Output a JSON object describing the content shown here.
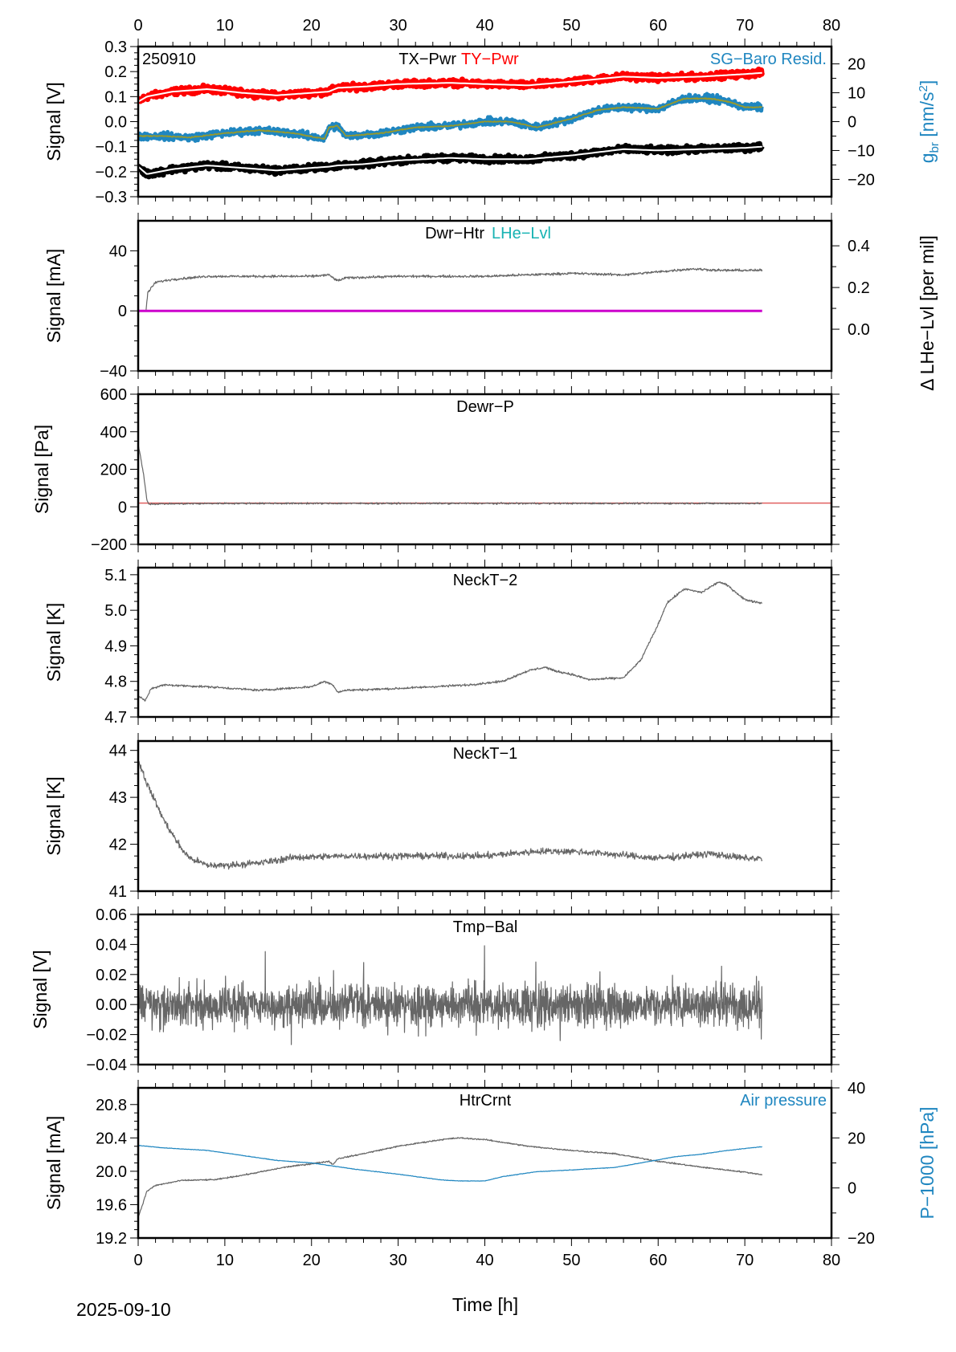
{
  "figure": {
    "date_label": "2025-09-10",
    "xlabel": "Time [h]",
    "xlim": [
      0,
      80
    ],
    "xticks": [
      0,
      10,
      20,
      30,
      40,
      50,
      60,
      70,
      80
    ],
    "xtick_labels": [
      "0",
      "10",
      "20",
      "30",
      "40",
      "50",
      "60",
      "70",
      "80"
    ],
    "data_end_hour": 72
  },
  "chart_data": [
    {
      "type": "line",
      "title": "TX-Pwr / TY-Pwr / SG-Baro Resid.",
      "id_label": "250910",
      "ylabel": "Signal [V]",
      "ylim": [
        -0.3,
        0.3
      ],
      "yticks": [
        -0.3,
        -0.2,
        -0.1,
        0.0,
        0.1,
        0.2,
        0.3
      ],
      "ytick_labels": [
        "−0.3",
        "−0.2",
        "−0.1",
        "0.0",
        "0.1",
        "0.2",
        "0.3"
      ],
      "y2label_main": "g",
      "y2label_sub": "br",
      "y2label_unit": " [nm/s",
      "y2label_sup": "2",
      "y2label_end": "]",
      "y2lim": [
        -26,
        26
      ],
      "y2ticks": [
        -20,
        -10,
        0,
        10,
        20
      ],
      "y2tick_labels": [
        "−20",
        "−10",
        "0",
        "10",
        "20"
      ],
      "legend": [
        {
          "text": "TX-Pwr",
          "color": "#000000"
        },
        {
          "text": "TY-Pwr",
          "color": "#ff0000"
        },
        {
          "text": "SG-Baro Resid.",
          "color": "#1f86c0"
        }
      ],
      "series": [
        {
          "name": "TY-Pwr",
          "color": "#ff0000",
          "axis": "left",
          "noise": 0.012,
          "x": [
            0,
            1,
            4,
            8,
            12,
            16,
            20,
            22,
            23,
            26,
            30,
            36,
            40,
            45,
            50,
            56,
            60,
            65,
            70,
            72
          ],
          "y": [
            0.08,
            0.1,
            0.12,
            0.13,
            0.115,
            0.105,
            0.115,
            0.12,
            0.135,
            0.14,
            0.15,
            0.155,
            0.15,
            0.145,
            0.16,
            0.18,
            0.175,
            0.18,
            0.19,
            0.195
          ]
        },
        {
          "name": "TX-Pwr",
          "color": "#000000",
          "axis": "left",
          "noise": 0.012,
          "x": [
            0,
            1,
            4,
            8,
            12,
            16,
            20,
            22,
            23,
            26,
            30,
            36,
            40,
            45,
            50,
            56,
            60,
            65,
            70,
            72
          ],
          "y": [
            -0.18,
            -0.21,
            -0.19,
            -0.175,
            -0.185,
            -0.195,
            -0.185,
            -0.18,
            -0.175,
            -0.17,
            -0.155,
            -0.145,
            -0.15,
            -0.15,
            -0.135,
            -0.11,
            -0.115,
            -0.11,
            -0.105,
            -0.1
          ]
        },
        {
          "name": "SG-Baro Resid.",
          "color": "#1f86c0",
          "axis": "right",
          "noise": 1.2,
          "x": [
            0,
            3,
            6,
            10,
            14,
            18,
            21.5,
            22,
            23,
            24,
            28,
            32,
            36,
            40,
            43,
            46,
            50,
            53,
            56,
            60,
            63,
            66,
            68,
            70,
            72
          ],
          "y": [
            -5,
            -5,
            -5.5,
            -4,
            -3,
            -4,
            -6,
            -2,
            -1.5,
            -5,
            -4,
            -2,
            -1.5,
            0,
            0,
            -2,
            1,
            4,
            5,
            4.5,
            8,
            8,
            7,
            5,
            5
          ]
        },
        {
          "name": "SG-Baro Resid. (smoothed)",
          "color": "#9a9a2a",
          "axis": "right",
          "noise": 0.2,
          "x": [
            0,
            3,
            6,
            10,
            14,
            18,
            21.5,
            22,
            23,
            24,
            28,
            32,
            36,
            40,
            43,
            46,
            50,
            53,
            56,
            60,
            63,
            66,
            68,
            70,
            72
          ],
          "y": [
            -5,
            -5,
            -5.5,
            -4,
            -3,
            -4,
            -6,
            -2,
            -1.5,
            -5,
            -4,
            -2,
            -1.5,
            0,
            0,
            -2,
            1,
            4,
            5,
            4.5,
            8,
            8,
            7,
            5,
            5
          ]
        }
      ]
    },
    {
      "type": "line",
      "title": "Dwr-Htr / LHe-Lvl",
      "ylabel": "Signal [mA]",
      "ylim": [
        -40,
        60
      ],
      "yticks": [
        -40,
        0,
        40
      ],
      "ytick_labels": [
        "−40",
        "0",
        "40"
      ],
      "y2label": "Δ LHe−Lvl [per mil]",
      "y2lim": [
        -0.2,
        0.52
      ],
      "y2ticks": [
        0.0,
        0.2,
        0.4
      ],
      "y2tick_labels": [
        "0.0",
        "0.2",
        "0.4"
      ],
      "legend": [
        {
          "text": "Dwr-Htr",
          "color": "#000000"
        },
        {
          "text": "LHe-Lvl",
          "color": "#17b3b3"
        }
      ],
      "series": [
        {
          "name": "Dwr-Htr",
          "color": "#666666",
          "axis": "left",
          "noise": 0.8,
          "x": [
            0.9,
            1.1,
            2,
            4,
            8,
            14,
            20,
            22,
            23,
            24,
            30,
            40,
            50,
            56,
            60,
            64,
            67,
            70,
            72
          ],
          "y": [
            0,
            12,
            19,
            21,
            23,
            23,
            23,
            24,
            20,
            22,
            23,
            23,
            25,
            24,
            26,
            28,
            27,
            27,
            27
          ]
        },
        {
          "name": "LHe-Lvl",
          "color": "#cc00cc",
          "axis": "left",
          "noise": 0,
          "x": [
            0,
            72
          ],
          "y": [
            0,
            0
          ]
        }
      ]
    },
    {
      "type": "line",
      "title": "Dewr-P",
      "ylabel": "Signal [Pa]",
      "ylim": [
        -200,
        600
      ],
      "yticks": [
        -200,
        0,
        200,
        400,
        600
      ],
      "ytick_labels": [
        "−200",
        "0",
        "200",
        "400",
        "600"
      ],
      "legend": [
        {
          "text": "Dewr-P",
          "color": "#000000"
        }
      ],
      "series": [
        {
          "name": "Dewr-P reference",
          "color": "#e06060",
          "axis": "left",
          "noise": 0,
          "x": [
            0,
            80
          ],
          "y": [
            20,
            20
          ]
        },
        {
          "name": "Dewr-P",
          "color": "#666666",
          "axis": "left",
          "noise": 4,
          "x": [
            0,
            0.3,
            0.6,
            1.0,
            1.2,
            10,
            20,
            40,
            60,
            72
          ],
          "y": [
            330,
            260,
            180,
            40,
            15,
            18,
            18,
            18,
            18,
            18
          ]
        }
      ]
    },
    {
      "type": "line",
      "title": "NeckT-2",
      "ylabel": "Signal [K]",
      "ylim": [
        4.7,
        5.12
      ],
      "yticks": [
        4.7,
        4.8,
        4.9,
        5.0,
        5.1
      ],
      "ytick_labels": [
        "4.7",
        "4.8",
        "4.9",
        "5.0",
        "5.1"
      ],
      "legend": [
        {
          "text": "NeckT-2",
          "color": "#000000"
        }
      ],
      "series": [
        {
          "name": "NeckT-2",
          "color": "#666666",
          "axis": "left",
          "noise": 0.003,
          "x": [
            0,
            0.8,
            1.5,
            3,
            8,
            14,
            20,
            21.5,
            22.5,
            23,
            24,
            30,
            38,
            42,
            45,
            47,
            48,
            50,
            52,
            56,
            58,
            60,
            61,
            63,
            65,
            67,
            68,
            70,
            72
          ],
          "y": [
            4.76,
            4.745,
            4.78,
            4.79,
            4.785,
            4.775,
            4.785,
            4.8,
            4.79,
            4.77,
            4.775,
            4.78,
            4.79,
            4.8,
            4.83,
            4.84,
            4.83,
            4.82,
            4.805,
            4.81,
            4.86,
            4.96,
            5.02,
            5.06,
            5.05,
            5.08,
            5.07,
            5.03,
            5.02
          ]
        }
      ]
    },
    {
      "type": "line",
      "title": "NeckT-1",
      "ylabel": "Signal [K]",
      "ylim": [
        41,
        44.2
      ],
      "yticks": [
        41,
        42,
        43,
        44
      ],
      "ytick_labels": [
        "41",
        "42",
        "43",
        "44"
      ],
      "legend": [
        {
          "text": "NeckT-1",
          "color": "#000000"
        }
      ],
      "series": [
        {
          "name": "NeckT-1",
          "color": "#666666",
          "axis": "left",
          "noise": 0.07,
          "x": [
            0,
            1,
            2,
            3,
            4,
            5,
            6,
            8,
            10,
            14,
            18,
            24,
            30,
            36,
            40,
            46,
            50,
            54,
            60,
            63,
            66,
            70,
            72
          ],
          "y": [
            43.8,
            43.3,
            42.9,
            42.5,
            42.2,
            41.9,
            41.7,
            41.55,
            41.55,
            41.6,
            41.72,
            41.75,
            41.75,
            41.75,
            41.75,
            41.85,
            41.85,
            41.8,
            41.7,
            41.75,
            41.8,
            41.7,
            41.7
          ]
        }
      ]
    },
    {
      "type": "line",
      "title": "Tmp-Bal",
      "ylabel": "Signal [V]",
      "ylim": [
        -0.04,
        0.06
      ],
      "yticks": [
        -0.04,
        -0.02,
        0.0,
        0.02,
        0.04,
        0.06
      ],
      "ytick_labels": [
        "−0.04",
        "−0.02",
        "0.00",
        "0.02",
        "0.04",
        "0.06"
      ],
      "legend": [
        {
          "text": "Tmp-Bal",
          "color": "#000000"
        }
      ],
      "series": [
        {
          "name": "Tmp-Bal",
          "color": "#666666",
          "axis": "left",
          "noise": 0.009,
          "band": true,
          "x": [
            0,
            72
          ],
          "y": [
            0.0,
            0.0
          ]
        }
      ]
    },
    {
      "type": "line",
      "title": "HtrCrnt / Air pressure",
      "ylabel": "Signal [mA]",
      "ylim": [
        19.2,
        21.0
      ],
      "yticks": [
        19.2,
        19.6,
        20.0,
        20.4,
        20.8
      ],
      "ytick_labels": [
        "19.2",
        "19.6",
        "20.0",
        "20.4",
        "20.8"
      ],
      "y2label": "P−1000 [hPa]",
      "y2lim": [
        -20,
        40
      ],
      "y2ticks": [
        -20,
        0,
        20,
        40
      ],
      "y2tick_labels": [
        "−20",
        "0",
        "20",
        "40"
      ],
      "legend": [
        {
          "text": "HtrCrnt",
          "color": "#000000"
        },
        {
          "text": "Air pressure",
          "color": "#1f86c0"
        }
      ],
      "series": [
        {
          "name": "HtrCrnt",
          "color": "#666666",
          "axis": "left",
          "noise": 0.008,
          "x": [
            0,
            0.5,
            1,
            2,
            5,
            9,
            13,
            17,
            20,
            22,
            22.5,
            23,
            25,
            30,
            35,
            37,
            40,
            45,
            50,
            55,
            60,
            65,
            70,
            72
          ],
          "y": [
            19.45,
            19.6,
            19.76,
            19.83,
            19.89,
            19.9,
            19.97,
            20.05,
            20.09,
            20.12,
            20.08,
            20.15,
            20.19,
            20.3,
            20.38,
            20.4,
            20.38,
            20.3,
            20.25,
            20.21,
            20.12,
            20.05,
            19.99,
            19.96
          ]
        },
        {
          "name": "Air pressure",
          "color": "#1f86c0",
          "axis": "right",
          "noise": 0.1,
          "x": [
            0,
            3,
            8,
            12,
            16,
            20,
            22,
            25,
            30,
            35,
            37,
            40,
            42,
            46,
            50,
            55,
            58,
            62,
            65,
            68,
            72
          ],
          "y": [
            17,
            16,
            15,
            13,
            11,
            10,
            9,
            7.5,
            5.5,
            3.2,
            2.8,
            2.8,
            4.5,
            6.5,
            7.2,
            8.2,
            10,
            12.5,
            13.5,
            15,
            16.5
          ]
        }
      ]
    }
  ]
}
